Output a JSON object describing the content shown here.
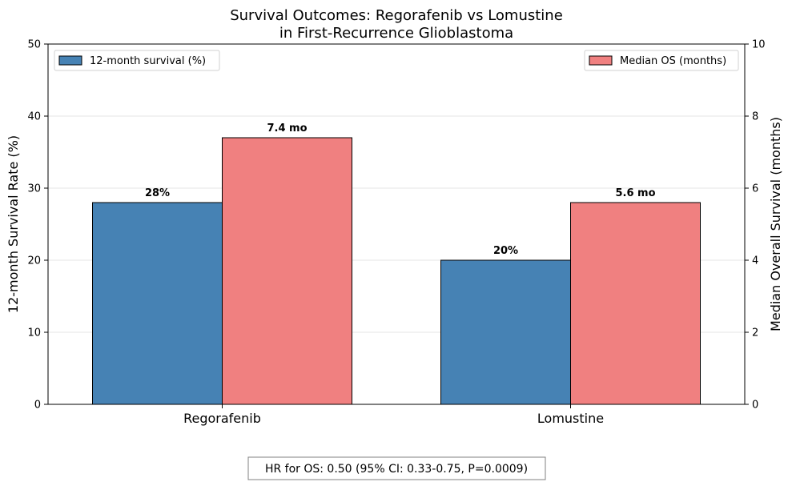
{
  "chart_data": {
    "type": "bar",
    "title_line1": "Survival Outcomes: Regorafenib vs Lomustine",
    "title_line2": "in First-Recurrence Glioblastoma",
    "categories": [
      "Regorafenib",
      "Lomustine"
    ],
    "series": [
      {
        "name": "12-month survival (%)",
        "axis": "left",
        "values": [
          28,
          20
        ],
        "labels": [
          "28%",
          "20%"
        ],
        "color": "#4682b4"
      },
      {
        "name": "Median OS (months)",
        "axis": "right",
        "values": [
          7.4,
          5.6
        ],
        "labels": [
          "7.4 mo",
          "5.6 mo"
        ],
        "color": "#f08080"
      }
    ],
    "left_axis": {
      "label": "12-month Survival Rate (%)",
      "ylim": [
        0,
        50
      ],
      "ticks": [
        0,
        10,
        20,
        30,
        40,
        50
      ]
    },
    "right_axis": {
      "label": "Median Overall Survival (months)",
      "ylim": [
        0,
        10
      ],
      "ticks": [
        0,
        2,
        4,
        6,
        8,
        10
      ]
    },
    "grid": "horizontal",
    "legend_left_placement": "top-left",
    "legend_right_placement": "top-right",
    "annotation": "HR for OS: 0.50 (95% CI: 0.33-0.75, P=0.0009)"
  }
}
